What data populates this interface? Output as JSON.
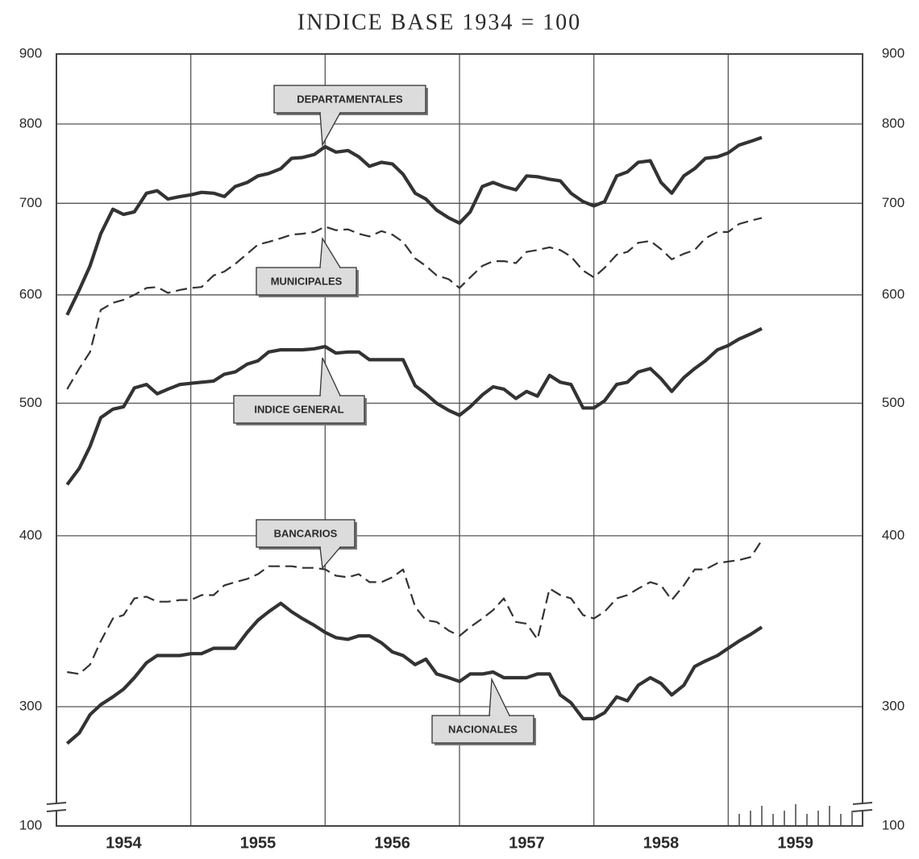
{
  "chart_data": {
    "type": "line",
    "title": "INDICE BASE 1934 = 100",
    "x": [
      1954.08,
      1954.17,
      1954.25,
      1954.33,
      1954.42,
      1954.5,
      1954.58,
      1954.67,
      1954.75,
      1954.83,
      1954.92,
      1955,
      1955.08,
      1955.17,
      1955.25,
      1955.33,
      1955.42,
      1955.5,
      1955.58,
      1955.67,
      1955.75,
      1955.83,
      1955.92,
      1956,
      1956.08,
      1956.17,
      1956.25,
      1956.33,
      1956.42,
      1956.5,
      1956.58,
      1956.67,
      1956.75,
      1956.83,
      1956.92,
      1957,
      1957.08,
      1957.17,
      1957.25,
      1957.33,
      1957.42,
      1957.5,
      1957.58,
      1957.67,
      1957.75,
      1957.83,
      1957.92,
      1958,
      1958.08,
      1958.17,
      1958.25,
      1958.33,
      1958.42,
      1958.5,
      1958.58,
      1958.67,
      1958.75,
      1958.83,
      1958.92,
      1959,
      1959.08,
      1959.17,
      1959.25
    ],
    "xlim": [
      1954,
      1960
    ],
    "xticks": [
      {
        "value": 1954,
        "label": "1954"
      },
      {
        "value": 1955,
        "label": "1955"
      },
      {
        "value": 1956,
        "label": "1956"
      },
      {
        "value": 1957,
        "label": "1957"
      },
      {
        "value": 1958,
        "label": "1958"
      },
      {
        "value": 1959,
        "label": "1959"
      }
    ],
    "ylim": [
      100,
      900
    ],
    "yticks": [
      100,
      300,
      400,
      500,
      600,
      700,
      800,
      900
    ],
    "log_scale": true,
    "axis_break": true,
    "grid": true,
    "series": [
      {
        "name": "DEPARTAMENTALES",
        "color": "#333333",
        "style": "solid",
        "values": [
          580,
          605,
          630,
          665,
          693,
          687,
          690,
          712,
          715,
          705,
          708,
          710,
          713,
          712,
          708,
          720,
          725,
          733,
          736,
          742,
          755,
          756,
          760,
          770,
          763,
          765,
          757,
          745,
          750,
          748,
          735,
          712,
          705,
          692,
          683,
          677,
          690,
          720,
          725,
          720,
          716,
          733,
          732,
          729,
          727,
          712,
          702,
          697,
          702,
          733,
          738,
          750,
          752,
          725,
          712,
          733,
          742,
          755,
          757,
          762,
          772,
          777,
          782
        ]
      },
      {
        "name": "MUNICIPALES",
        "color": "#333333",
        "style": "dashed",
        "values": [
          512,
          530,
          545,
          585,
          592,
          595,
          600,
          607,
          608,
          602,
          605,
          607,
          608,
          620,
          624,
          632,
          643,
          653,
          656,
          660,
          664,
          665,
          667,
          673,
          669,
          670,
          665,
          662,
          668,
          664,
          656,
          638,
          630,
          620,
          616,
          607,
          618,
          630,
          635,
          635,
          633,
          645,
          647,
          650,
          647,
          640,
          625,
          618,
          628,
          642,
          645,
          655,
          657,
          648,
          637,
          643,
          647,
          660,
          667,
          667,
          676,
          680,
          683
        ]
      },
      {
        "name": "INDICE GENERAL",
        "color": "#333333",
        "style": "solid",
        "values": [
          436,
          448,
          465,
          488,
          495,
          497,
          513,
          516,
          508,
          512,
          516,
          517,
          518,
          519,
          525,
          527,
          534,
          537,
          545,
          547,
          547,
          547,
          548,
          550,
          544,
          545,
          545,
          538,
          538,
          538,
          538,
          515,
          508,
          500,
          494,
          490,
          497,
          507,
          514,
          512,
          504,
          510,
          506,
          524,
          518,
          516,
          496,
          496,
          502,
          516,
          518,
          527,
          530,
          521,
          510,
          522,
          530,
          537,
          547,
          551,
          557,
          562,
          567
        ]
      },
      {
        "name": "BANCARIOS",
        "color": "#333333",
        "style": "dashed",
        "values": [
          318,
          317,
          322,
          335,
          348,
          350,
          360,
          361,
          358,
          358,
          359,
          359,
          362,
          362,
          368,
          370,
          372,
          375,
          380,
          380,
          380,
          379,
          379,
          378,
          374,
          373,
          375,
          370,
          370,
          373,
          378,
          355,
          347,
          346,
          341,
          338,
          343,
          348,
          353,
          360,
          346,
          345,
          336,
          366,
          362,
          360,
          350,
          348,
          352,
          360,
          362,
          366,
          370,
          368,
          359,
          368,
          378,
          378,
          382,
          383,
          384,
          386,
          397
        ]
      },
      {
        "name": "NACIONALES",
        "color": "#333333",
        "style": "solid",
        "values": [
          282,
          287,
          296,
          301,
          305,
          309,
          315,
          323,
          327,
          327,
          327,
          328,
          328,
          331,
          331,
          331,
          340,
          347,
          352,
          357,
          352,
          348,
          344,
          340,
          337,
          336,
          338,
          338,
          334,
          329,
          327,
          322,
          325,
          317,
          315,
          313,
          317,
          317,
          318,
          315,
          315,
          315,
          317,
          317,
          306,
          302,
          294,
          294,
          297,
          305,
          303,
          311,
          315,
          312,
          306,
          311,
          321,
          324,
          327,
          331,
          335,
          339,
          343
        ]
      }
    ]
  }
}
